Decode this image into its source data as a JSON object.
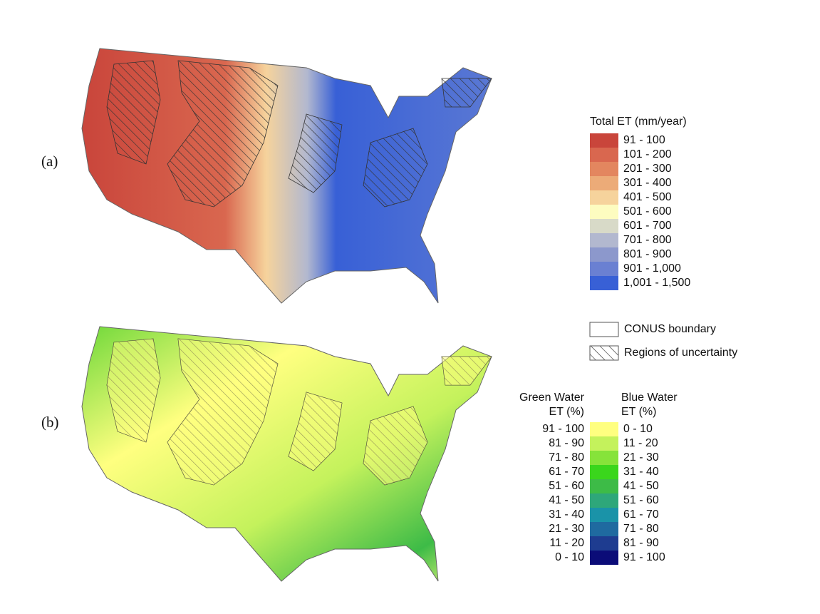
{
  "panels": [
    {
      "label": "(a)"
    },
    {
      "label": "(b)"
    }
  ],
  "legend_a": {
    "title": "Total ET (mm/year)",
    "items": [
      {
        "label": "91 - 100",
        "color": "#c9453b"
      },
      {
        "label": "101 - 200",
        "color": "#d9674f"
      },
      {
        "label": "201 - 300",
        "color": "#e3865f"
      },
      {
        "label": "301 - 400",
        "color": "#ecab78"
      },
      {
        "label": "401 - 500",
        "color": "#f6d39c"
      },
      {
        "label": "501 - 600",
        "color": "#fdfcc0"
      },
      {
        "label": "601 - 700",
        "color": "#d8dac8"
      },
      {
        "label": "701 - 800",
        "color": "#b2b8cf"
      },
      {
        "label": "801 - 900",
        "color": "#8c98cc"
      },
      {
        "label": "901 - 1,000",
        "color": "#6a80d2"
      },
      {
        "label": "1,001 - 1,500",
        "color": "#3860d6"
      }
    ]
  },
  "boundary_legend": {
    "items": [
      {
        "label": "CONUS boundary"
      },
      {
        "label": "Regions of uncertainty"
      }
    ]
  },
  "legend_b": {
    "left_title": [
      "Green Water",
      "ET (%)"
    ],
    "right_title": [
      "Blue Water",
      "ET (%)"
    ],
    "items": [
      {
        "green_label": "91 - 100",
        "blue_label": "0 - 10",
        "color": "#ffff80"
      },
      {
        "green_label": "81 - 90",
        "blue_label": "11 - 20",
        "color": "#c4f25c"
      },
      {
        "green_label": "71 - 80",
        "blue_label": "21 - 30",
        "color": "#86e33a"
      },
      {
        "green_label": "61 - 70",
        "blue_label": "31 - 40",
        "color": "#3ad61c"
      },
      {
        "green_label": "51 - 60",
        "blue_label": "41 - 50",
        "color": "#3dbb47"
      },
      {
        "green_label": "41 - 50",
        "blue_label": "51 - 60",
        "color": "#2ea77a"
      },
      {
        "green_label": "31 - 40",
        "blue_label": "61 - 70",
        "color": "#1a93a8"
      },
      {
        "green_label": "21 - 30",
        "blue_label": "71 - 80",
        "color": "#1f6aa0"
      },
      {
        "green_label": "11 - 20",
        "blue_label": "81 - 90",
        "color": "#1e3c90"
      },
      {
        "green_label": "0 - 10",
        "blue_label": "91 - 100",
        "color": "#0b0c78"
      }
    ]
  }
}
